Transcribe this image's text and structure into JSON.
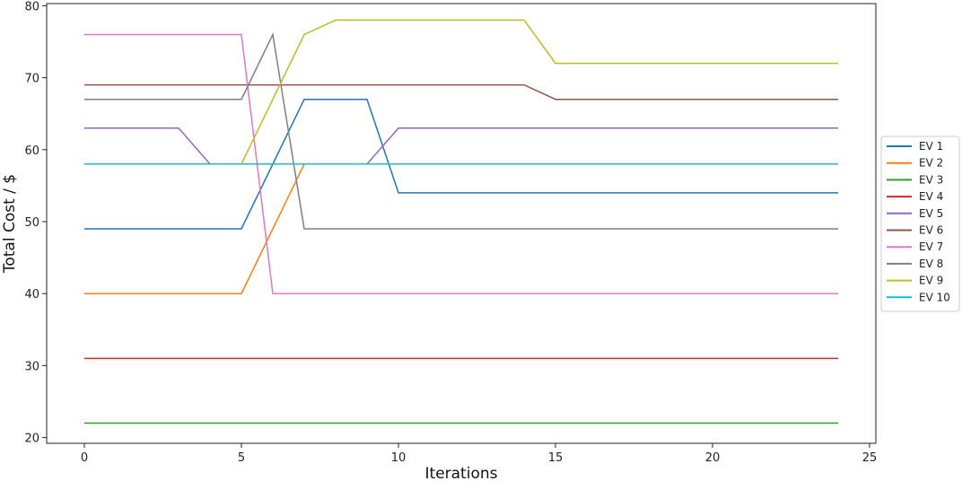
{
  "chart_data": {
    "type": "line",
    "xlabel": "Iterations",
    "ylabel": "Total Cost / $",
    "xlim": [
      -1.2,
      25.2
    ],
    "ylim": [
      19.2,
      80.3
    ],
    "xticks": [
      0,
      5,
      10,
      15,
      20,
      25
    ],
    "yticks": [
      20,
      30,
      40,
      50,
      60,
      70,
      80
    ],
    "grid": false,
    "legend": "right",
    "series": [
      {
        "name": "EV 1",
        "color": "#1f77b4",
        "x": [
          0,
          5,
          7,
          9,
          10,
          24
        ],
        "values": [
          49,
          49,
          67,
          67,
          54,
          54
        ]
      },
      {
        "name": "EV 2",
        "color": "#ff7f0e",
        "x": [
          0,
          5,
          7
        ],
        "values": [
          40,
          40,
          58
        ]
      },
      {
        "name": "EV 3",
        "color": "#2ca02c",
        "x": [
          0,
          24
        ],
        "values": [
          22,
          22
        ]
      },
      {
        "name": "EV 4",
        "color": "#d62728",
        "x": [
          0,
          24
        ],
        "values": [
          31,
          31
        ]
      },
      {
        "name": "EV 5",
        "color": "#9467bd",
        "x": [
          0,
          3,
          4,
          9,
          10,
          24
        ],
        "values": [
          63,
          63,
          58,
          58,
          63,
          63
        ]
      },
      {
        "name": "EV 6",
        "color": "#8c564b",
        "x": [
          0,
          14,
          15,
          24
        ],
        "values": [
          69,
          69,
          67,
          67
        ]
      },
      {
        "name": "EV 7",
        "color": "#e377c2",
        "x": [
          0,
          5,
          6,
          24
        ],
        "values": [
          76,
          76,
          40,
          40
        ]
      },
      {
        "name": "EV 8",
        "color": "#7f7f7f",
        "x": [
          0,
          5,
          6,
          7,
          24
        ],
        "values": [
          67,
          67,
          76,
          49,
          49
        ]
      },
      {
        "name": "EV 9",
        "color": "#bcbd22",
        "x": [
          5,
          7,
          8,
          14,
          15,
          24
        ],
        "values": [
          58,
          76,
          78,
          78,
          72,
          72
        ]
      },
      {
        "name": "EV 10",
        "color": "#17becf",
        "x": [
          0,
          24
        ],
        "values": [
          58,
          58
        ]
      }
    ]
  }
}
